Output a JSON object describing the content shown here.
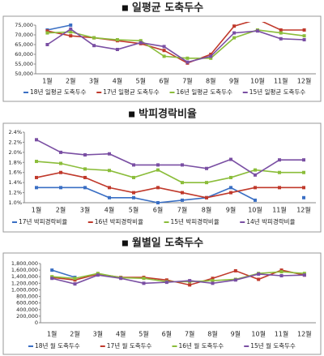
{
  "chart_data": [
    {
      "type": "line",
      "title": "일평균 도축두수",
      "categories": [
        "1월",
        "2월",
        "3월",
        "4월",
        "5월",
        "6월",
        "7월",
        "8월",
        "9월",
        "10월",
        "11월",
        "12월"
      ],
      "ylim": [
        50000,
        75000
      ],
      "yticks": [
        {
          "value": 50000,
          "label": "50,000"
        },
        {
          "value": 55000,
          "label": "55,000"
        },
        {
          "value": 60000,
          "label": "60,000"
        },
        {
          "value": 65000,
          "label": "65,000"
        },
        {
          "value": 70000,
          "label": "70,000"
        },
        {
          "value": 75000,
          "label": "75,000"
        }
      ],
      "grid": false,
      "series": [
        {
          "name": "18년 일평균 도축두수",
          "color": "#3a6fc4",
          "values": [
            72500,
            75000,
            null,
            null,
            null,
            null,
            null,
            null,
            null,
            null,
            null,
            null
          ]
        },
        {
          "name": "17년 일평균 도축두수",
          "color": "#c0392b",
          "values": [
            72000,
            69500,
            68500,
            67000,
            65500,
            62000,
            55500,
            60000,
            74500,
            78000,
            72500,
            72500
          ]
        },
        {
          "name": "16년 일평균 도축두수",
          "color": "#8bbd3a",
          "values": [
            71000,
            71500,
            68500,
            67500,
            67000,
            59000,
            58000,
            58000,
            68500,
            72500,
            71000,
            69500
          ]
        },
        {
          "name": "15년 일평균 도축두수",
          "color": "#7a4fa3",
          "values": [
            65000,
            73000,
            64500,
            62500,
            66000,
            64000,
            56000,
            59000,
            71000,
            72000,
            68000,
            67500
          ]
        }
      ]
    },
    {
      "type": "line",
      "title": "박피경락비율",
      "categories": [
        "1월",
        "2월",
        "3월",
        "4월",
        "5월",
        "6월",
        "7월",
        "8월",
        "9월",
        "10월",
        "11월",
        "12월"
      ],
      "ylim": [
        1.0,
        2.4
      ],
      "yticks": [
        {
          "value": 1.0,
          "label": "1.0%"
        },
        {
          "value": 1.2,
          "label": "1.2%"
        },
        {
          "value": 1.4,
          "label": "1.4%"
        },
        {
          "value": 1.6,
          "label": "1.6%"
        },
        {
          "value": 1.8,
          "label": "1.8%"
        },
        {
          "value": 2.0,
          "label": "2.0%"
        },
        {
          "value": 2.2,
          "label": "2.2%"
        },
        {
          "value": 2.4,
          "label": "2.4%"
        }
      ],
      "grid": false,
      "series": [
        {
          "name": "17년 박피경락비율",
          "color": "#3a6fc4",
          "values": [
            1.3,
            1.3,
            1.3,
            1.1,
            1.1,
            1.0,
            1.05,
            1.1,
            1.3,
            1.05,
            null,
            1.1
          ]
        },
        {
          "name": "16년 박피경락비율",
          "color": "#c0392b",
          "values": [
            1.5,
            1.6,
            1.5,
            1.3,
            1.2,
            1.3,
            1.2,
            1.1,
            1.2,
            1.3,
            1.3,
            1.3
          ]
        },
        {
          "name": "15년 박피경락비율",
          "color": "#8bbd3a",
          "values": [
            1.82,
            1.78,
            1.67,
            1.64,
            1.5,
            1.65,
            1.4,
            1.4,
            1.5,
            1.65,
            1.6,
            1.6
          ]
        },
        {
          "name": "14년 박피경락비율",
          "color": "#7a4fa3",
          "values": [
            2.25,
            2.0,
            1.95,
            1.97,
            1.75,
            1.75,
            1.75,
            1.68,
            1.86,
            1.55,
            1.85,
            1.85
          ]
        }
      ]
    },
    {
      "type": "line",
      "title": "월별일 도축두수",
      "categories": [
        "1월",
        "2월",
        "3월",
        "4월",
        "5월",
        "6월",
        "7월",
        "8월",
        "9월",
        "10월",
        "11월",
        "12월"
      ],
      "ylim": [
        0,
        1800000
      ],
      "yticks": [
        0,
        {
          "value": 200000,
          "label": "200,000"
        },
        {
          "value": 400000,
          "label": "400,000"
        },
        {
          "value": 600000,
          "label": "600,000"
        },
        {
          "value": 800000,
          "label": "800,000"
        },
        {
          "value": 1000000,
          "label": "1,000,000"
        },
        {
          "value": 1200000,
          "label": "1,200,000"
        },
        {
          "value": 1400000,
          "label": "1,400,000"
        },
        {
          "value": 1600000,
          "label": "1,600,000"
        },
        {
          "value": 1800000,
          "label": "1,800,000"
        }
      ],
      "grid": false,
      "series": [
        {
          "name": "18년 월 도축두수",
          "color": "#3a6fc4",
          "values": [
            1600000,
            1380000,
            null,
            null,
            null,
            null,
            null,
            null,
            null,
            null,
            null,
            null
          ]
        },
        {
          "name": "17년 월 도축두수",
          "color": "#c0392b",
          "values": [
            1380000,
            1300000,
            1480000,
            1380000,
            1380000,
            1300000,
            1150000,
            1350000,
            1580000,
            1320000,
            1600000,
            1450000
          ]
        },
        {
          "name": "16년 월 도축두수",
          "color": "#8bbd3a",
          "values": [
            1400000,
            1350000,
            1500000,
            1370000,
            1350000,
            1250000,
            1250000,
            1280000,
            1320000,
            1500000,
            1550000,
            1500000
          ]
        },
        {
          "name": "15년 월 도축두수",
          "color": "#7a4fa3",
          "values": [
            1350000,
            1180000,
            1450000,
            1350000,
            1200000,
            1230000,
            1280000,
            1200000,
            1300000,
            1480000,
            1430000,
            1450000
          ]
        }
      ]
    }
  ]
}
